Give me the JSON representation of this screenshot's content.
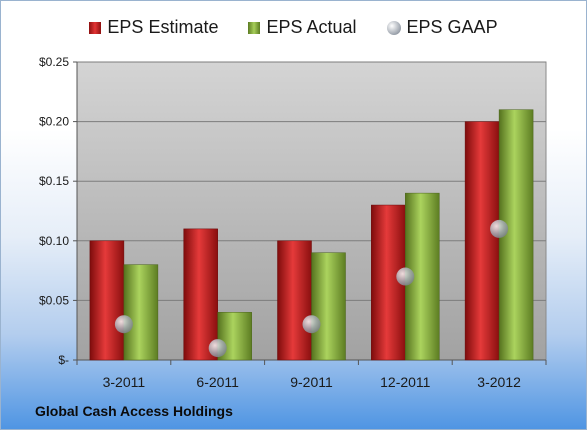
{
  "company": "Global Cash Access Holdings",
  "legend": {
    "estimate": "EPS Estimate",
    "actual": "EPS Actual",
    "gaap": "EPS GAAP"
  },
  "colors": {
    "estimate": "#c92222",
    "actual": "#86ad3b",
    "gaap": "#a9afb7",
    "plot_top": "#d4d4d4",
    "plot_bottom": "#a2a2a2"
  },
  "chart_data": {
    "type": "bar",
    "categories": [
      "3-2011",
      "6-2011",
      "9-2011",
      "12-2011",
      "3-2012"
    ],
    "series": [
      {
        "name": "EPS Estimate",
        "type": "bar",
        "values": [
          0.1,
          0.11,
          0.1,
          0.13,
          0.2
        ]
      },
      {
        "name": "EPS Actual",
        "type": "bar",
        "values": [
          0.08,
          0.04,
          0.09,
          0.14,
          0.21
        ]
      },
      {
        "name": "EPS GAAP",
        "type": "scatter",
        "values": [
          0.03,
          0.01,
          0.03,
          0.07,
          0.11
        ]
      }
    ],
    "ylim": [
      0,
      0.25
    ],
    "yticks": [
      {
        "value": 0,
        "label": "$-"
      },
      {
        "value": 0.05,
        "label": "$0.05"
      },
      {
        "value": 0.1,
        "label": "$0.10"
      },
      {
        "value": 0.15,
        "label": "$0.15"
      },
      {
        "value": 0.2,
        "label": "$0.20"
      },
      {
        "value": 0.25,
        "label": "$0.25"
      }
    ],
    "grid": true,
    "legend_position": "top"
  }
}
